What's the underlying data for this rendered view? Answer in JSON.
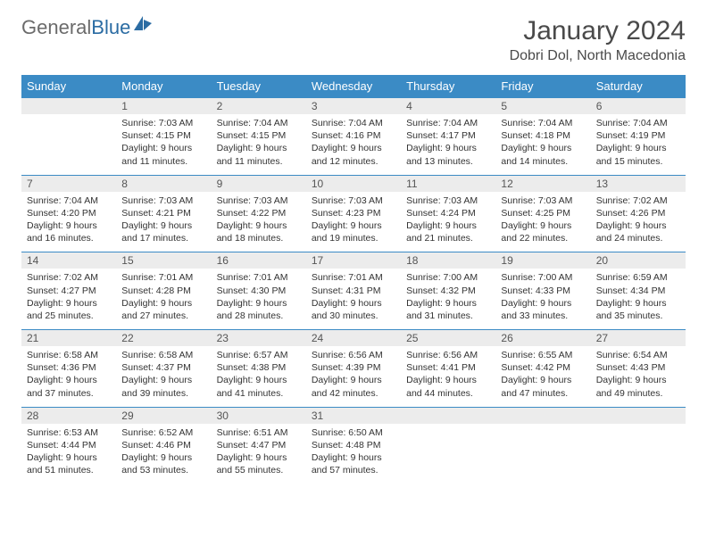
{
  "brand": {
    "part1": "General",
    "part2": "Blue"
  },
  "title": "January 2024",
  "location": "Dobri Dol, North Macedonia",
  "colors": {
    "header_bg": "#3b8bc5",
    "header_text": "#ffffff",
    "daynum_bg": "#ececec",
    "border": "#3b8bc5",
    "logo_blue": "#2b6ca3",
    "logo_gray": "#6b6b6b"
  },
  "weekdays": [
    "Sunday",
    "Monday",
    "Tuesday",
    "Wednesday",
    "Thursday",
    "Friday",
    "Saturday"
  ],
  "weeks": [
    [
      {
        "day": "",
        "sunrise": "",
        "sunset": "",
        "daylight1": "",
        "daylight2": ""
      },
      {
        "day": "1",
        "sunrise": "Sunrise: 7:03 AM",
        "sunset": "Sunset: 4:15 PM",
        "daylight1": "Daylight: 9 hours",
        "daylight2": "and 11 minutes."
      },
      {
        "day": "2",
        "sunrise": "Sunrise: 7:04 AM",
        "sunset": "Sunset: 4:15 PM",
        "daylight1": "Daylight: 9 hours",
        "daylight2": "and 11 minutes."
      },
      {
        "day": "3",
        "sunrise": "Sunrise: 7:04 AM",
        "sunset": "Sunset: 4:16 PM",
        "daylight1": "Daylight: 9 hours",
        "daylight2": "and 12 minutes."
      },
      {
        "day": "4",
        "sunrise": "Sunrise: 7:04 AM",
        "sunset": "Sunset: 4:17 PM",
        "daylight1": "Daylight: 9 hours",
        "daylight2": "and 13 minutes."
      },
      {
        "day": "5",
        "sunrise": "Sunrise: 7:04 AM",
        "sunset": "Sunset: 4:18 PM",
        "daylight1": "Daylight: 9 hours",
        "daylight2": "and 14 minutes."
      },
      {
        "day": "6",
        "sunrise": "Sunrise: 7:04 AM",
        "sunset": "Sunset: 4:19 PM",
        "daylight1": "Daylight: 9 hours",
        "daylight2": "and 15 minutes."
      }
    ],
    [
      {
        "day": "7",
        "sunrise": "Sunrise: 7:04 AM",
        "sunset": "Sunset: 4:20 PM",
        "daylight1": "Daylight: 9 hours",
        "daylight2": "and 16 minutes."
      },
      {
        "day": "8",
        "sunrise": "Sunrise: 7:03 AM",
        "sunset": "Sunset: 4:21 PM",
        "daylight1": "Daylight: 9 hours",
        "daylight2": "and 17 minutes."
      },
      {
        "day": "9",
        "sunrise": "Sunrise: 7:03 AM",
        "sunset": "Sunset: 4:22 PM",
        "daylight1": "Daylight: 9 hours",
        "daylight2": "and 18 minutes."
      },
      {
        "day": "10",
        "sunrise": "Sunrise: 7:03 AM",
        "sunset": "Sunset: 4:23 PM",
        "daylight1": "Daylight: 9 hours",
        "daylight2": "and 19 minutes."
      },
      {
        "day": "11",
        "sunrise": "Sunrise: 7:03 AM",
        "sunset": "Sunset: 4:24 PM",
        "daylight1": "Daylight: 9 hours",
        "daylight2": "and 21 minutes."
      },
      {
        "day": "12",
        "sunrise": "Sunrise: 7:03 AM",
        "sunset": "Sunset: 4:25 PM",
        "daylight1": "Daylight: 9 hours",
        "daylight2": "and 22 minutes."
      },
      {
        "day": "13",
        "sunrise": "Sunrise: 7:02 AM",
        "sunset": "Sunset: 4:26 PM",
        "daylight1": "Daylight: 9 hours",
        "daylight2": "and 24 minutes."
      }
    ],
    [
      {
        "day": "14",
        "sunrise": "Sunrise: 7:02 AM",
        "sunset": "Sunset: 4:27 PM",
        "daylight1": "Daylight: 9 hours",
        "daylight2": "and 25 minutes."
      },
      {
        "day": "15",
        "sunrise": "Sunrise: 7:01 AM",
        "sunset": "Sunset: 4:28 PM",
        "daylight1": "Daylight: 9 hours",
        "daylight2": "and 27 minutes."
      },
      {
        "day": "16",
        "sunrise": "Sunrise: 7:01 AM",
        "sunset": "Sunset: 4:30 PM",
        "daylight1": "Daylight: 9 hours",
        "daylight2": "and 28 minutes."
      },
      {
        "day": "17",
        "sunrise": "Sunrise: 7:01 AM",
        "sunset": "Sunset: 4:31 PM",
        "daylight1": "Daylight: 9 hours",
        "daylight2": "and 30 minutes."
      },
      {
        "day": "18",
        "sunrise": "Sunrise: 7:00 AM",
        "sunset": "Sunset: 4:32 PM",
        "daylight1": "Daylight: 9 hours",
        "daylight2": "and 31 minutes."
      },
      {
        "day": "19",
        "sunrise": "Sunrise: 7:00 AM",
        "sunset": "Sunset: 4:33 PM",
        "daylight1": "Daylight: 9 hours",
        "daylight2": "and 33 minutes."
      },
      {
        "day": "20",
        "sunrise": "Sunrise: 6:59 AM",
        "sunset": "Sunset: 4:34 PM",
        "daylight1": "Daylight: 9 hours",
        "daylight2": "and 35 minutes."
      }
    ],
    [
      {
        "day": "21",
        "sunrise": "Sunrise: 6:58 AM",
        "sunset": "Sunset: 4:36 PM",
        "daylight1": "Daylight: 9 hours",
        "daylight2": "and 37 minutes."
      },
      {
        "day": "22",
        "sunrise": "Sunrise: 6:58 AM",
        "sunset": "Sunset: 4:37 PM",
        "daylight1": "Daylight: 9 hours",
        "daylight2": "and 39 minutes."
      },
      {
        "day": "23",
        "sunrise": "Sunrise: 6:57 AM",
        "sunset": "Sunset: 4:38 PM",
        "daylight1": "Daylight: 9 hours",
        "daylight2": "and 41 minutes."
      },
      {
        "day": "24",
        "sunrise": "Sunrise: 6:56 AM",
        "sunset": "Sunset: 4:39 PM",
        "daylight1": "Daylight: 9 hours",
        "daylight2": "and 42 minutes."
      },
      {
        "day": "25",
        "sunrise": "Sunrise: 6:56 AM",
        "sunset": "Sunset: 4:41 PM",
        "daylight1": "Daylight: 9 hours",
        "daylight2": "and 44 minutes."
      },
      {
        "day": "26",
        "sunrise": "Sunrise: 6:55 AM",
        "sunset": "Sunset: 4:42 PM",
        "daylight1": "Daylight: 9 hours",
        "daylight2": "and 47 minutes."
      },
      {
        "day": "27",
        "sunrise": "Sunrise: 6:54 AM",
        "sunset": "Sunset: 4:43 PM",
        "daylight1": "Daylight: 9 hours",
        "daylight2": "and 49 minutes."
      }
    ],
    [
      {
        "day": "28",
        "sunrise": "Sunrise: 6:53 AM",
        "sunset": "Sunset: 4:44 PM",
        "daylight1": "Daylight: 9 hours",
        "daylight2": "and 51 minutes."
      },
      {
        "day": "29",
        "sunrise": "Sunrise: 6:52 AM",
        "sunset": "Sunset: 4:46 PM",
        "daylight1": "Daylight: 9 hours",
        "daylight2": "and 53 minutes."
      },
      {
        "day": "30",
        "sunrise": "Sunrise: 6:51 AM",
        "sunset": "Sunset: 4:47 PM",
        "daylight1": "Daylight: 9 hours",
        "daylight2": "and 55 minutes."
      },
      {
        "day": "31",
        "sunrise": "Sunrise: 6:50 AM",
        "sunset": "Sunset: 4:48 PM",
        "daylight1": "Daylight: 9 hours",
        "daylight2": "and 57 minutes."
      },
      {
        "day": "",
        "sunrise": "",
        "sunset": "",
        "daylight1": "",
        "daylight2": ""
      },
      {
        "day": "",
        "sunrise": "",
        "sunset": "",
        "daylight1": "",
        "daylight2": ""
      },
      {
        "day": "",
        "sunrise": "",
        "sunset": "",
        "daylight1": "",
        "daylight2": ""
      }
    ]
  ]
}
